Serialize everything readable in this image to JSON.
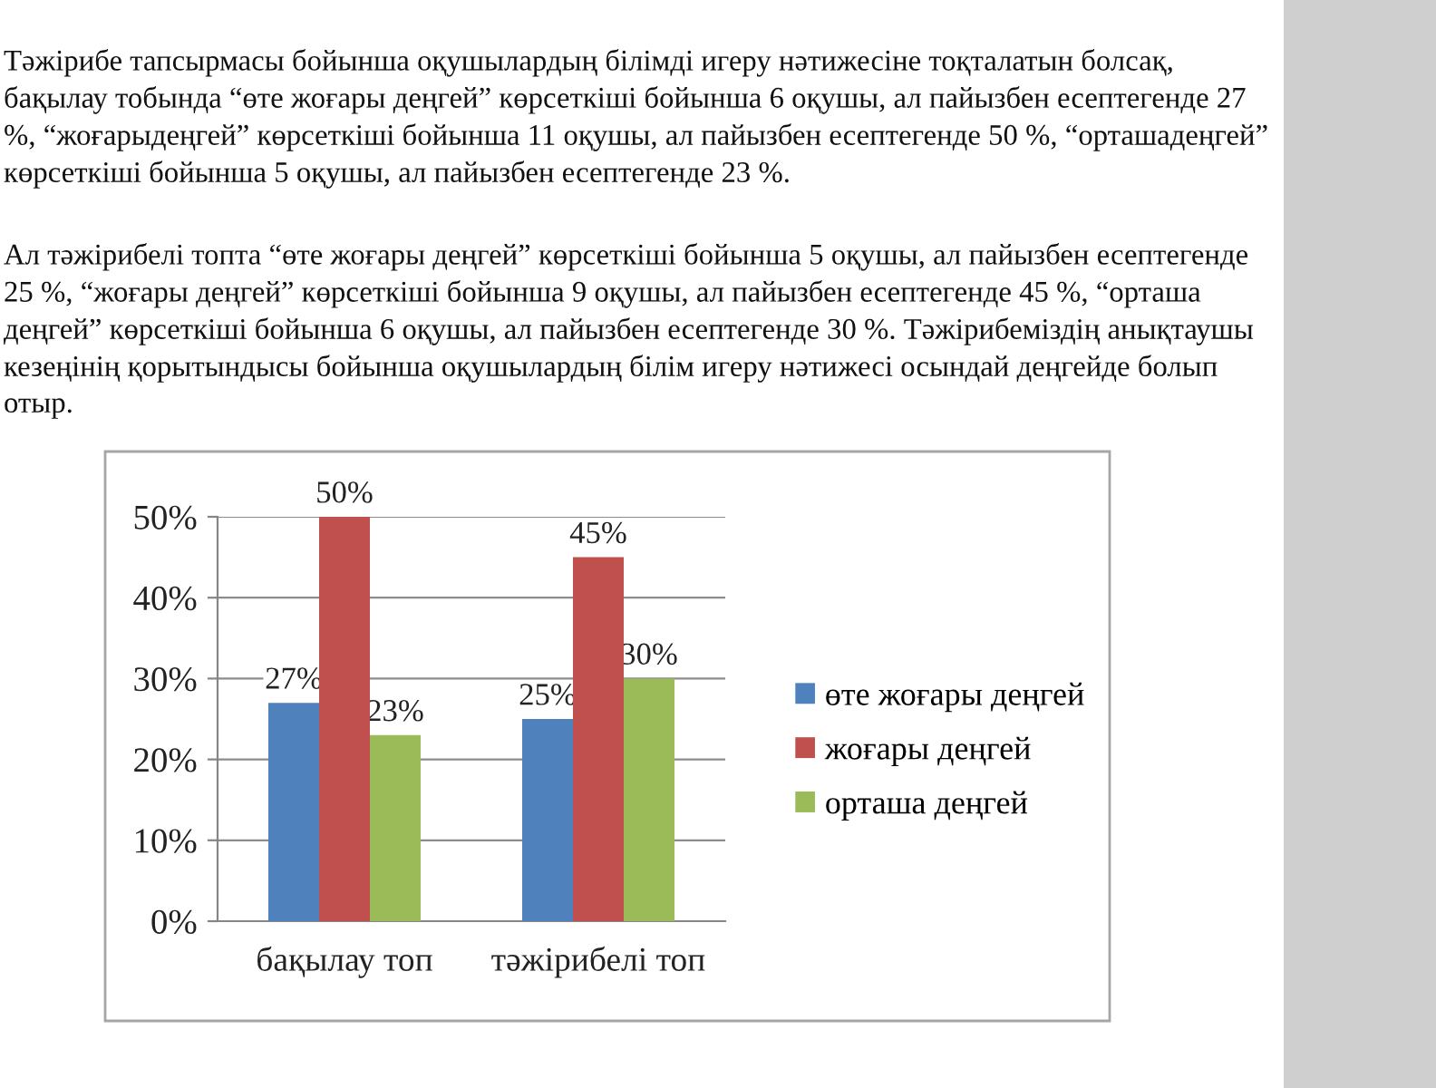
{
  "chart_data": {
    "type": "bar",
    "annotations": [
      "Тәжірибе тапсырмасы бойынша оқушылардың білімді игеру нәтижесіне тоқталатын болсақ, бақылау тобында “өте жоғары деңгей” көрсеткіші бойынша 6 оқушы, ал пайызбен есептегенде 27 %, “жоғарыдеңгей” көрсеткіші бойынша 11 оқушы, ал пайызбен есептегенде 50 %, “орташадеңгей” көрсеткіші бойынша 5 оқушы, ал пайызбен есептегенде 23 %.",
      "Ал тәжірибелі топта “өте жоғары деңгей” көрсеткіші бойынша 5 оқушы, ал пайызбен есептегенде 25 %, “жоғары деңгей” көрсеткіші бойынша 9 оқушы, ал пайызбен есептегенде 45 %, “орташа деңгей” көрсеткіші бойынша 6 оқушы, ал пайызбен есептегенде 30 %. Тәжірибеміздің анықтаушы кезеңінің қорытындысы бойынша оқушылардың білім игеру нәтижесі осындай деңгейде болып отыр."
    ],
    "categories": [
      "бақылау топ",
      "тәжірибелі топ"
    ],
    "series": [
      {
        "name": "өте жоғары деңгей",
        "color": "#4f81bd",
        "values": [
          27,
          25
        ],
        "value_labels": [
          "27%",
          "25%"
        ]
      },
      {
        "name": "жоғары деңгей",
        "color": "#c0504d",
        "values": [
          50,
          45
        ],
        "value_labels": [
          "50%",
          "45%"
        ]
      },
      {
        "name": "орташа деңгей",
        "color": "#9bbb59",
        "values": [
          23,
          30
        ],
        "value_labels": [
          "23%",
          "30%"
        ]
      }
    ],
    "ylim": [
      0,
      50
    ],
    "yticks": [
      {
        "value": 0,
        "label": "0%"
      },
      {
        "value": 10,
        "label": "10%"
      },
      {
        "value": 20,
        "label": "20%"
      },
      {
        "value": 30,
        "label": "30%"
      },
      {
        "value": 40,
        "label": "40%"
      },
      {
        "value": 50,
        "label": "50%"
      }
    ],
    "grid": "y",
    "legend": "right"
  }
}
